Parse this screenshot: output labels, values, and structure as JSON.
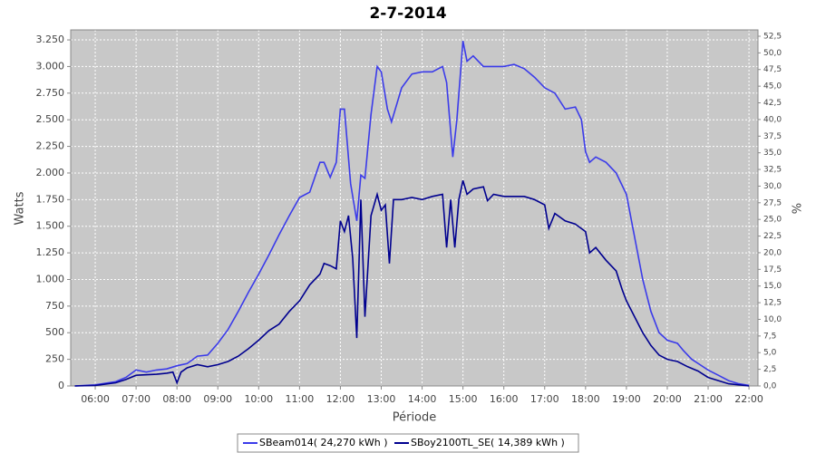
{
  "chart_data": {
    "type": "line",
    "title": "2-7-2014",
    "x_label": "Période",
    "y_label": "Watts",
    "y2_label": "%",
    "xlim": [
      5.4,
      22.22
    ],
    "xticks": [
      {
        "value": 6,
        "label": "06:00"
      },
      {
        "value": 7,
        "label": "07:00"
      },
      {
        "value": 8,
        "label": "08:00"
      },
      {
        "value": 9,
        "label": "09:00"
      },
      {
        "value": 10,
        "label": "10:00"
      },
      {
        "value": 11,
        "label": "11:00"
      },
      {
        "value": 12,
        "label": "12:00"
      },
      {
        "value": 13,
        "label": "13:00"
      },
      {
        "value": 14,
        "label": "14:00"
      },
      {
        "value": 15,
        "label": "15:00"
      },
      {
        "value": 16,
        "label": "16:00"
      },
      {
        "value": 17,
        "label": "17:00"
      },
      {
        "value": 18,
        "label": "18:00"
      },
      {
        "value": 19,
        "label": "19:00"
      },
      {
        "value": 20,
        "label": "20:00"
      },
      {
        "value": 21,
        "label": "21:00"
      },
      {
        "value": 22,
        "label": "22:00"
      }
    ],
    "ylim": [
      0,
      3344
    ],
    "yticks": [
      0,
      250,
      500,
      750,
      {
        "value": 1000,
        "label": "1.000"
      },
      {
        "value": 1250,
        "label": "1.250"
      },
      {
        "value": 1500,
        "label": "1.500"
      },
      {
        "value": 1750,
        "label": "1.750"
      },
      {
        "value": 2000,
        "label": "2.000"
      },
      {
        "value": 2250,
        "label": "2.250"
      },
      {
        "value": 2500,
        "label": "2.500"
      },
      {
        "value": 2750,
        "label": "2.750"
      },
      {
        "value": 3000,
        "label": "3.000"
      },
      {
        "value": 3250,
        "label": "3.250"
      }
    ],
    "y2lim": [
      0,
      53.45
    ],
    "y2ticks": [
      {
        "value": 0,
        "label": "0,0"
      },
      {
        "value": 2.5,
        "label": "2,5"
      },
      {
        "value": 5,
        "label": "5,0"
      },
      {
        "value": 7.5,
        "label": "7,5"
      },
      {
        "value": 10,
        "label": "10,0"
      },
      {
        "value": 12.5,
        "label": "12,5"
      },
      {
        "value": 15,
        "label": "15,0"
      },
      {
        "value": 17.5,
        "label": "17,5"
      },
      {
        "value": 20,
        "label": "20,0"
      },
      {
        "value": 22.5,
        "label": "22,5"
      },
      {
        "value": 25,
        "label": "25,0"
      },
      {
        "value": 27.5,
        "label": "27,5"
      },
      {
        "value": 30,
        "label": "30,0"
      },
      {
        "value": 32.5,
        "label": "32,5"
      },
      {
        "value": 35,
        "label": "35,0"
      },
      {
        "value": 37.5,
        "label": "37,5"
      },
      {
        "value": 40,
        "label": "40,0"
      },
      {
        "value": 42.5,
        "label": "42,5"
      },
      {
        "value": 45,
        "label": "45,0"
      },
      {
        "value": 47.5,
        "label": "47,5"
      },
      {
        "value": 50,
        "label": "50,0"
      },
      {
        "value": 52.5,
        "label": "52,5"
      }
    ],
    "grid": true,
    "legend": "bottom",
    "series": [
      {
        "name": "SBeam014( 24,270 kWh )",
        "color": "#3b3bea",
        "x": [
          5.5,
          6,
          6.5,
          6.75,
          7,
          7.25,
          7.5,
          7.75,
          8,
          8.25,
          8.5,
          8.75,
          9,
          9.25,
          9.5,
          9.75,
          10,
          10.25,
          10.5,
          10.75,
          11,
          11.25,
          11.5,
          11.6,
          11.75,
          11.9,
          12,
          12.1,
          12.25,
          12.4,
          12.5,
          12.6,
          12.75,
          12.9,
          13,
          13.15,
          13.25,
          13.5,
          13.75,
          14,
          14.25,
          14.5,
          14.6,
          14.75,
          14.85,
          15,
          15.1,
          15.25,
          15.5,
          16,
          16.25,
          16.5,
          16.75,
          17,
          17.25,
          17.5,
          17.75,
          17.9,
          18,
          18.1,
          18.25,
          18.5,
          18.75,
          19,
          19.2,
          19.4,
          19.6,
          19.8,
          20,
          20.25,
          20.4,
          20.6,
          20.8,
          21,
          21.25,
          21.5,
          21.75,
          22
        ],
        "values": [
          0,
          10,
          40,
          80,
          150,
          130,
          150,
          160,
          190,
          210,
          280,
          290,
          400,
          530,
          700,
          880,
          1050,
          1230,
          1420,
          1600,
          1770,
          1820,
          2100,
          2100,
          1960,
          2100,
          2600,
          2600,
          1900,
          1550,
          1980,
          1950,
          2550,
          3000,
          2950,
          2600,
          2480,
          2800,
          2930,
          2950,
          2950,
          3000,
          2850,
          2150,
          2500,
          3240,
          3050,
          3100,
          3000,
          3000,
          3020,
          2980,
          2900,
          2800,
          2750,
          2600,
          2620,
          2500,
          2200,
          2100,
          2150,
          2100,
          2000,
          1800,
          1400,
          1000,
          700,
          500,
          430,
          400,
          330,
          250,
          200,
          150,
          100,
          50,
          20,
          5
        ]
      },
      {
        "name": "SBoy2100TL_SE( 14,389 kWh )",
        "color": "#00008f",
        "x": [
          5.5,
          6,
          6.5,
          6.75,
          7,
          7.5,
          7.75,
          7.9,
          8,
          8.1,
          8.25,
          8.5,
          8.75,
          9,
          9.25,
          9.5,
          9.75,
          10,
          10.25,
          10.5,
          10.75,
          11,
          11.25,
          11.5,
          11.6,
          11.75,
          11.9,
          12,
          12.1,
          12.2,
          12.3,
          12.4,
          12.5,
          12.6,
          12.75,
          12.9,
          13,
          13.1,
          13.2,
          13.3,
          13.5,
          13.75,
          14,
          14.25,
          14.5,
          14.6,
          14.7,
          14.8,
          14.9,
          15,
          15.1,
          15.25,
          15.5,
          15.6,
          15.75,
          16,
          16.5,
          16.75,
          17,
          17.1,
          17.25,
          17.5,
          17.75,
          18,
          18.1,
          18.25,
          18.5,
          18.75,
          18.9,
          19,
          19.2,
          19.4,
          19.6,
          19.8,
          20,
          20.25,
          20.5,
          20.75,
          21,
          21.25,
          21.5,
          22
        ],
        "values": [
          0,
          5,
          30,
          60,
          100,
          110,
          120,
          130,
          30,
          130,
          170,
          200,
          180,
          200,
          230,
          280,
          350,
          430,
          520,
          580,
          700,
          800,
          950,
          1050,
          1150,
          1130,
          1100,
          1550,
          1450,
          1600,
          1200,
          450,
          1750,
          650,
          1600,
          1800,
          1650,
          1700,
          1150,
          1750,
          1750,
          1770,
          1750,
          1780,
          1800,
          1300,
          1750,
          1300,
          1750,
          1930,
          1800,
          1850,
          1870,
          1740,
          1800,
          1780,
          1780,
          1750,
          1700,
          1480,
          1620,
          1550,
          1520,
          1450,
          1250,
          1300,
          1180,
          1080,
          900,
          800,
          650,
          500,
          380,
          290,
          250,
          230,
          180,
          140,
          80,
          50,
          20,
          0
        ]
      }
    ]
  }
}
